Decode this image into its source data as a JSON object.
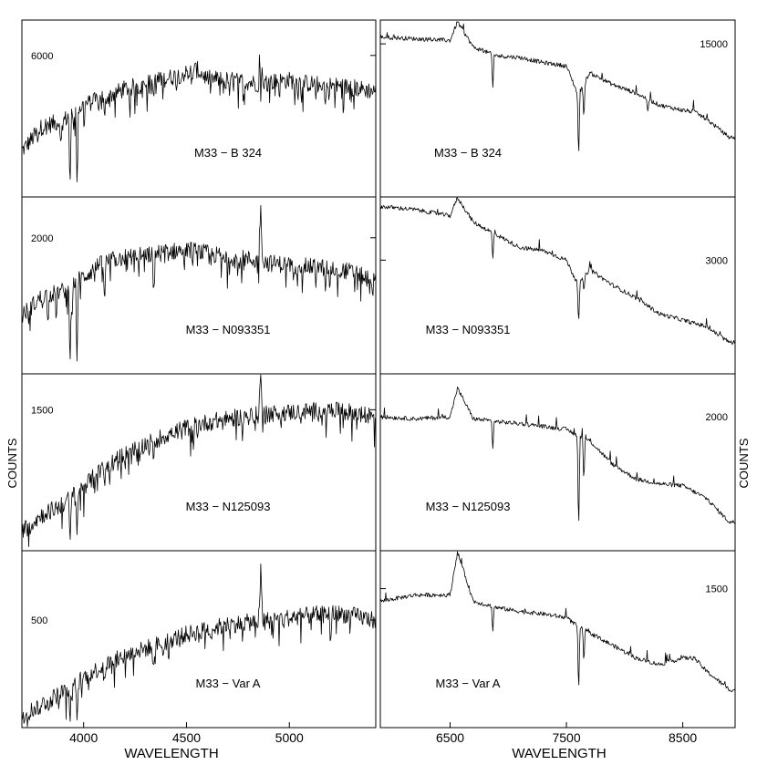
{
  "chart_data": {
    "type": "line",
    "ylabel": "COUNTS",
    "columns": [
      {
        "side": "left",
        "xlabel": "WAVELENGTH",
        "xlim": [
          3700,
          5420
        ],
        "xticks": [
          4000,
          4500,
          5000
        ],
        "xtick_labels": [
          "4000",
          "4500",
          "5000"
        ]
      },
      {
        "side": "right",
        "xlabel": "WAVELENGTH",
        "xlim": [
          5900,
          8950
        ],
        "xticks": [
          6500,
          7500,
          8500
        ],
        "xtick_labels": [
          "6500",
          "7500",
          "8500"
        ]
      }
    ],
    "rows": [
      {
        "label": "M33 − B 324",
        "left": {
          "ytick": 6000,
          "ytick_label": "6000",
          "ylim": [
            2000,
            7000
          ]
        },
        "right": {
          "ytick": 15000,
          "ytick_label": "15000",
          "ylim": [
            6000,
            16400
          ]
        }
      },
      {
        "label": "M33 − N093351",
        "left": {
          "ytick": 2000,
          "ytick_label": "2000",
          "ylim": [
            600,
            2420
          ]
        },
        "right": {
          "ytick": 3000,
          "ytick_label": "3000",
          "ylim": [
            1200,
            4000
          ]
        }
      },
      {
        "label": "M33 − N125093",
        "left": {
          "ytick": 1500,
          "ytick_label": "1500",
          "ylim": [
            400,
            1780
          ]
        },
        "right": {
          "ytick": 2000,
          "ytick_label": "2000",
          "ylim": [
            600,
            2450
          ]
        }
      },
      {
        "label": "M33 − Var A",
        "left": {
          "ytick": 500,
          "ytick_label": "500",
          "ylim": [
            50,
            790
          ]
        },
        "right": {
          "ytick": 1500,
          "ytick_label": "1500",
          "ylim": [
            400,
            1800
          ]
        }
      }
    ],
    "spectra": [
      {
        "row": 0,
        "side": "left",
        "x": [
          3700,
          3800,
          3900,
          4000,
          4100,
          4200,
          4300,
          4400,
          4500,
          4550,
          4600,
          4700,
          4800,
          4850,
          4861,
          4870,
          4900,
          5000,
          5100,
          5200,
          5300,
          5400
        ],
        "y": [
          3300,
          4000,
          4150,
          4600,
          4800,
          5050,
          5200,
          5350,
          5500,
          5600,
          5350,
          5300,
          5250,
          5200,
          6900,
          5200,
          5250,
          5300,
          5200,
          5150,
          5100,
          5000
        ],
        "absorption": [
          [
            3934,
            2200
          ],
          [
            3968,
            2400
          ],
          [
            3890,
            3400
          ],
          [
            4102,
            4200
          ],
          [
            4340,
            4800
          ],
          [
            4861,
            4700
          ],
          [
            5175,
            4600
          ]
        ]
      },
      {
        "row": 0,
        "side": "right",
        "x": [
          5900,
          6200,
          6500,
          6563,
          6700,
          6900,
          7100,
          7300,
          7500,
          7600,
          7700,
          7900,
          8100,
          8300,
          8500,
          8600,
          8700,
          8900
        ],
        "y": [
          15400,
          15300,
          15200,
          16300,
          14800,
          14300,
          14200,
          13900,
          13700,
          12000,
          13300,
          12600,
          12100,
          11400,
          11100,
          11000,
          10600,
          9500
        ],
        "absorption": [
          [
            6867,
            12300
          ],
          [
            7605,
            8100
          ],
          [
            7650,
            10500
          ],
          [
            8200,
            11000
          ]
        ]
      },
      {
        "row": 1,
        "side": "left",
        "x": [
          3700,
          3800,
          3900,
          4000,
          4100,
          4200,
          4300,
          4400,
          4500,
          4600,
          4700,
          4800,
          4850,
          4861,
          4870,
          4900,
          5000,
          5100,
          5200,
          5300,
          5420
        ],
        "y": [
          1200,
          1400,
          1450,
          1600,
          1750,
          1800,
          1820,
          1850,
          1880,
          1840,
          1800,
          1780,
          1760,
          2380,
          1760,
          1740,
          1720,
          1700,
          1690,
          1650,
          1550
        ],
        "absorption": [
          [
            3934,
            650
          ],
          [
            3968,
            720
          ],
          [
            4102,
            1300
          ],
          [
            4340,
            1400
          ],
          [
            5175,
            1450
          ]
        ]
      },
      {
        "row": 1,
        "side": "right",
        "x": [
          5900,
          6200,
          6500,
          6563,
          6700,
          6900,
          7100,
          7300,
          7500,
          7600,
          7700,
          7900,
          8100,
          8300,
          8500,
          8700,
          8900
        ],
        "y": [
          3850,
          3800,
          3700,
          3990,
          3600,
          3400,
          3200,
          3150,
          3000,
          2600,
          2850,
          2600,
          2400,
          2150,
          2050,
          1950,
          1700
        ],
        "absorption": [
          [
            6867,
            3000
          ],
          [
            7605,
            1950
          ],
          [
            7650,
            2500
          ]
        ]
      },
      {
        "row": 2,
        "side": "left",
        "x": [
          3700,
          3800,
          3900,
          4000,
          4100,
          4200,
          4300,
          4400,
          4500,
          4600,
          4700,
          4800,
          4850,
          4861,
          4870,
          4900,
          5000,
          5100,
          5200,
          5300,
          5420
        ],
        "y": [
          560,
          680,
          760,
          900,
          1050,
          1150,
          1230,
          1300,
          1360,
          1400,
          1430,
          1450,
          1460,
          1770,
          1460,
          1470,
          1480,
          1490,
          1495,
          1480,
          1440
        ],
        "absorption": [
          [
            3934,
            450
          ],
          [
            3968,
            520
          ],
          [
            4102,
            920
          ],
          [
            4340,
            1080
          ]
        ]
      },
      {
        "row": 2,
        "side": "right",
        "x": [
          5900,
          6200,
          6500,
          6563,
          6700,
          6900,
          7100,
          7300,
          7500,
          7600,
          7700,
          7900,
          8100,
          8300,
          8500,
          8700,
          8900
        ],
        "y": [
          2000,
          1980,
          2000,
          2300,
          1980,
          1950,
          1930,
          1900,
          1870,
          1800,
          1750,
          1500,
          1350,
          1300,
          1280,
          1150,
          900
        ],
        "absorption": [
          [
            6867,
            1650
          ],
          [
            7605,
            750
          ],
          [
            7650,
            1300
          ]
        ]
      },
      {
        "row": 3,
        "side": "left",
        "x": [
          3700,
          3800,
          3900,
          4000,
          4100,
          4200,
          4300,
          4400,
          4500,
          4600,
          4700,
          4800,
          4850,
          4861,
          4870,
          4900,
          5000,
          5100,
          5200,
          5300,
          5420
        ],
        "y": [
          100,
          150,
          200,
          260,
          310,
          350,
          380,
          410,
          440,
          460,
          480,
          490,
          495,
          700,
          495,
          500,
          510,
          520,
          530,
          520,
          500
        ],
        "absorption": [
          [
            3934,
            60
          ],
          [
            3968,
            80
          ],
          [
            4102,
            250
          ],
          [
            4340,
            300
          ],
          [
            5200,
            380
          ]
        ]
      },
      {
        "row": 3,
        "side": "right",
        "x": [
          5900,
          6200,
          6500,
          6563,
          6700,
          6900,
          7100,
          7300,
          7500,
          7600,
          7700,
          7900,
          8100,
          8300,
          8500,
          8600,
          8700,
          8900
        ],
        "y": [
          1400,
          1450,
          1450,
          1790,
          1400,
          1350,
          1320,
          1300,
          1270,
          1200,
          1150,
          1050,
          950,
          900,
          950,
          950,
          850,
          700
        ],
        "absorption": [
          [
            6867,
            1150
          ],
          [
            7605,
            650
          ],
          [
            7650,
            900
          ]
        ]
      }
    ]
  }
}
